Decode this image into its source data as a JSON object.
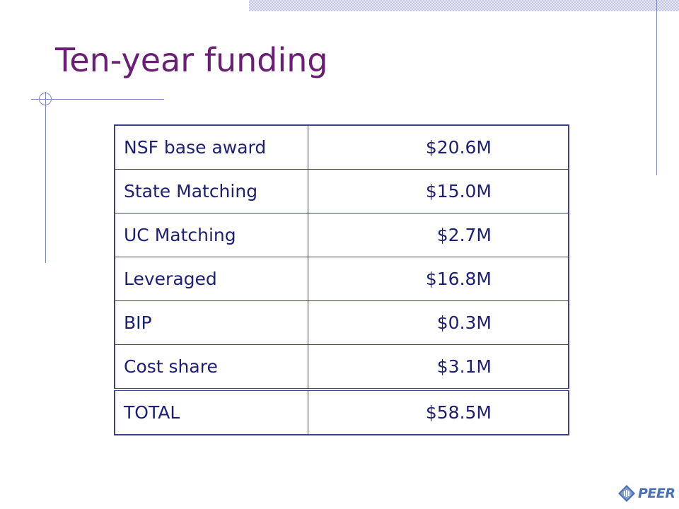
{
  "slide": {
    "title": "Ten-year funding"
  },
  "table": {
    "rows": [
      {
        "label": "NSF base award",
        "value": "$20.6M"
      },
      {
        "label": "State Matching",
        "value": "$15.0M"
      },
      {
        "label": "UC Matching",
        "value": "$2.7M"
      },
      {
        "label": "Leveraged",
        "value": "$16.8M"
      },
      {
        "label": "BIP",
        "value": "$0.3M"
      },
      {
        "label": "Cost share",
        "value": "$3.1M"
      }
    ],
    "total": {
      "label": "TOTAL",
      "value": "$58.5M"
    }
  },
  "logo": {
    "text": "PEER",
    "icon": "peer-diamond-icon"
  },
  "colors": {
    "title": "#6a1f74",
    "table_text": "#1c1f74",
    "table_border": "#3d3f8f",
    "decor_lines": "#7b84c8",
    "logo": "#4a6fb5"
  }
}
